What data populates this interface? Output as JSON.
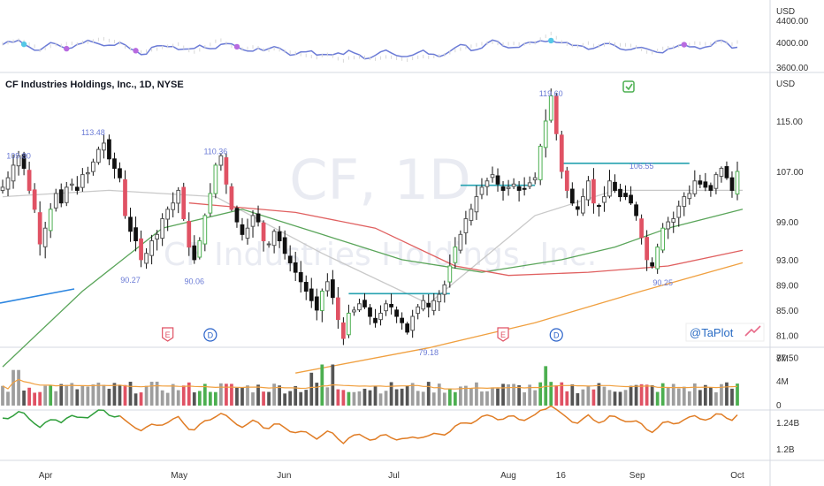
{
  "title": "CF Industries Holdings, Inc., 1D, NYSE",
  "watermark": {
    "symbol": "CF, 1D",
    "name": "CF Industries Holdings, Inc."
  },
  "brand": "@TaPlot",
  "colors": {
    "up": "#555555",
    "down": "#111111",
    "up_strong": "#4caf50",
    "down_strong": "#e05264",
    "sma10": "#c9c9c9",
    "sma21": "#b8b8b8",
    "sma50": "#5aa55a",
    "sma150": "#e06060",
    "sma200": "#f0a040",
    "rs": "#6b7bd6",
    "level": "#26a2b0",
    "vol_ma": "#f0a040",
    "obv_down": "#e07c24",
    "obv_up": "#2e9e3a",
    "axis_text": "#333333"
  },
  "top_panel": {
    "label": "USD",
    "ticks": [
      "4400.00",
      "4000.00",
      "3600.00"
    ],
    "ylim": [
      3500,
      4500
    ]
  },
  "price_panel": {
    "label": "USD",
    "ticks": [
      "115.00",
      "107.00",
      "99.00",
      "93.00",
      "89.00",
      "85.00",
      "81.00",
      "77.50"
    ],
    "ylim": [
      76,
      124
    ]
  },
  "volume_panel": {
    "ticks": [
      "8M",
      "4M",
      "0"
    ],
    "ylim": [
      0,
      9
    ]
  },
  "obv_panel": {
    "ticks": [
      "1.24B",
      "1.2B"
    ]
  },
  "x_axis": {
    "labels": [
      "Apr",
      "May",
      "Jun",
      "Jul",
      "Aug",
      "16",
      "Sep",
      "Oct"
    ]
  },
  "annotations": [
    "109.80",
    "113.48",
    "90.27",
    "90.06",
    "110.36",
    "79.18",
    "119.60",
    "106.55",
    "90.25"
  ],
  "earnings": [
    "E",
    "E"
  ],
  "dividends": [
    "D",
    "D"
  ],
  "chart_data": {
    "type": "candlestick",
    "title": "CF Industries Holdings, Inc., 1D, NYSE",
    "ylabel": "USD",
    "ylim": [
      76,
      124
    ],
    "levels": [
      {
        "value": 87.6,
        "from_index": 65,
        "to_index": 84
      },
      {
        "value": 104.8,
        "from_index": 86,
        "to_index": 100
      },
      {
        "value": 108.3,
        "from_index": 105,
        "to_index": 129
      }
    ],
    "close": [
      104.5,
      106.0,
      108.0,
      109.5,
      107.5,
      104.0,
      101.0,
      95.5,
      98.0,
      101.0,
      103.5,
      102.0,
      104.5,
      105.0,
      104.0,
      106.5,
      106.8,
      108.5,
      110.5,
      111.5,
      109.0,
      107.5,
      106.0,
      100.0,
      97.5,
      96.0,
      93.0,
      94.0,
      96.0,
      97.0,
      99.5,
      101.0,
      102.0,
      104.0,
      99.5,
      95.0,
      93.0,
      96.0,
      100.0,
      103.5,
      108.0,
      109.5,
      105.0,
      101.0,
      99.0,
      97.0,
      98.0,
      100.0,
      99.0,
      96.0,
      95.5,
      97.5,
      96.0,
      94.0,
      92.5,
      91.0,
      89.5,
      88.0,
      86.5,
      85.0,
      88.0,
      89.5,
      87.0,
      83.5,
      80.5,
      84.5,
      85.0,
      86.0,
      85.5,
      84.0,
      83.0,
      84.5,
      86.0,
      85.5,
      84.0,
      83.0,
      81.5,
      84.0,
      85.5,
      86.5,
      85.5,
      86.5,
      87.5,
      89.0,
      92.0,
      95.0,
      97.0,
      99.5,
      101.0,
      103.0,
      104.5,
      105.5,
      106.5,
      105.0,
      104.0,
      104.5,
      105.0,
      104.0,
      104.2,
      105.2,
      106.0,
      111.0,
      115.0,
      119.0,
      113.0,
      107.0,
      104.0,
      102.0,
      101.0,
      103.0,
      105.5,
      102.0,
      101.5,
      103.0,
      105.5,
      104.0,
      103.0,
      103.0,
      102.0,
      100.0,
      96.5,
      93.0,
      92.0,
      95.0,
      98.0,
      99.0,
      99.5,
      101.5,
      103.0,
      103.5,
      105.5,
      105.0,
      104.5,
      104.0,
      106.5,
      107.5,
      106.0,
      104.0,
      107.0
    ],
    "rs_line": {
      "name": "RS",
      "ylim": [
        3500,
        4500
      ]
    },
    "moving_averages": [
      {
        "key": "sma10",
        "points": [
          [
            0,
            103
          ],
          [
            20,
            104
          ],
          [
            40,
            103
          ],
          [
            60,
            94
          ],
          [
            80,
            86
          ],
          [
            100,
            100
          ],
          [
            115,
            104
          ],
          [
            139,
            104
          ]
        ]
      },
      {
        "key": "sma50",
        "points": [
          [
            0,
            76
          ],
          [
            15,
            88
          ],
          [
            30,
            98
          ],
          [
            45,
            101
          ],
          [
            60,
            97
          ],
          [
            75,
            93
          ],
          [
            90,
            91
          ],
          [
            105,
            93
          ],
          [
            115,
            95
          ],
          [
            125,
            98
          ],
          [
            139,
            101
          ]
        ]
      },
      {
        "key": "sma150",
        "points": [
          [
            35,
            102
          ],
          [
            55,
            100.5
          ],
          [
            70,
            98
          ],
          [
            85,
            92
          ],
          [
            95,
            90.5
          ],
          [
            110,
            91
          ],
          [
            125,
            92
          ],
          [
            139,
            94.5
          ]
        ]
      },
      {
        "key": "sma200",
        "points": [
          [
            55,
            75
          ],
          [
            80,
            79
          ],
          [
            100,
            83
          ],
          [
            120,
            88
          ],
          [
            139,
            92.5
          ]
        ]
      }
    ],
    "volume": {
      "unit": "M",
      "ylim": [
        0,
        9
      ]
    },
    "obv": {
      "ylim_label": [
        "1.2B",
        "1.24B"
      ]
    }
  }
}
